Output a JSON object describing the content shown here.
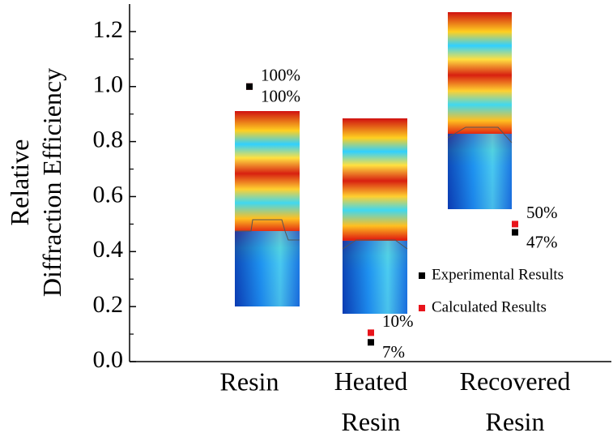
{
  "chart_data": {
    "type": "scatter",
    "y_label": [
      "Relative",
      "Diffraction Efficiency"
    ],
    "categories": [
      "Resin",
      "Heated Resin",
      "Recovered Resin"
    ],
    "ylim": [
      0,
      1.3
    ],
    "yticks": [
      {
        "value": 0,
        "label": "0.0"
      },
      {
        "value": 0.2,
        "label": "0.2"
      },
      {
        "value": 0.4,
        "label": "0.4"
      },
      {
        "value": 0.6,
        "label": "0.6"
      },
      {
        "value": 0.8,
        "label": "0.8"
      },
      {
        "value": 1,
        "label": "1.0"
      },
      {
        "value": 1.2,
        "label": "1.2"
      }
    ],
    "legend": "right",
    "series": [
      {
        "name": "Experimental Results",
        "color": "#000000",
        "values": [
          1.0,
          0.07,
          0.47
        ],
        "value_labels": [
          "100%",
          "7%",
          "47%"
        ]
      },
      {
        "name": "Calculated Results",
        "color": "#e8141b",
        "values": [
          1.0,
          0.105,
          0.5
        ],
        "value_labels": [
          "100%",
          "10%",
          "50%"
        ]
      }
    ]
  }
}
